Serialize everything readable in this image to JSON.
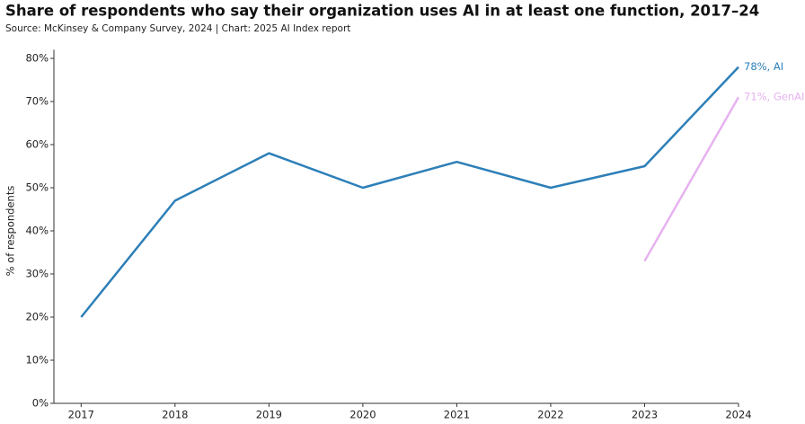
{
  "chart_data": {
    "type": "line",
    "title": "Share of respondents who say their organization uses AI in at least one function, 2017–24",
    "subtitle": "Source: McKinsey & Company Survey, 2024 | Chart: 2025 AI Index report",
    "y_label": "% of respondents",
    "x": [
      2017,
      2018,
      2019,
      2020,
      2021,
      2022,
      2023,
      2024
    ],
    "xlim": [
      2016.71,
      2024
    ],
    "xticks": [
      2017,
      2018,
      2019,
      2020,
      2021,
      2022,
      2023,
      2024
    ],
    "ylim": [
      0,
      82
    ],
    "yticks": [
      {
        "value": 0,
        "label": "0%"
      },
      {
        "value": 10,
        "label": "10%"
      },
      {
        "value": 20,
        "label": "20%"
      },
      {
        "value": 30,
        "label": "30%"
      },
      {
        "value": 40,
        "label": "40%"
      },
      {
        "value": 50,
        "label": "50%"
      },
      {
        "value": 60,
        "label": "60%"
      },
      {
        "value": 70,
        "label": "70%"
      },
      {
        "value": 80,
        "label": "80%"
      }
    ],
    "grid": false,
    "series": [
      {
        "color": "#2d7fb8",
        "values": [
          20,
          47,
          58,
          50,
          56,
          50,
          55,
          78
        ],
        "value_labels": [
          null,
          null,
          null,
          null,
          null,
          null,
          null,
          "78%, AI"
        ]
      },
      {
        "color": "#e6b2f0",
        "values": [
          null,
          null,
          null,
          null,
          null,
          null,
          33,
          71
        ],
        "value_labels": [
          null,
          null,
          null,
          null,
          null,
          null,
          null,
          "71%, GenAI"
        ]
      }
    ]
  }
}
